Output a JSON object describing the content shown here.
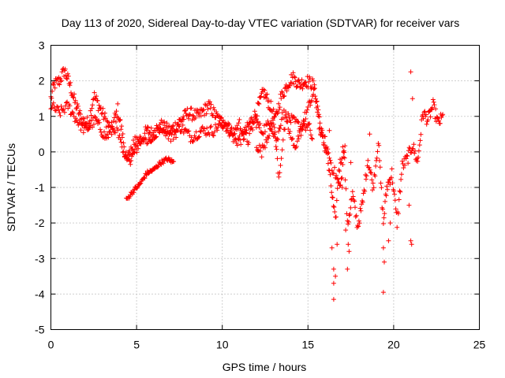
{
  "chart_data": {
    "type": "scatter",
    "title": "Day 113 of 2020, Sidereal Day-to-day VTEC variation (SDTVAR) for receiver vars",
    "xlabel": "GPS time / hours",
    "ylabel": "SDTVAR / TECUs",
    "xlim": [
      0,
      25
    ],
    "ylim": [
      -5,
      3
    ],
    "xticks": [
      "0",
      "5",
      "10",
      "15",
      "20",
      "25"
    ],
    "yticks": [
      "-5",
      "-4",
      "-3",
      "-2",
      "-1",
      "0",
      "1",
      "2",
      "3"
    ],
    "grid": true,
    "marker": "+",
    "series": [
      {
        "name": "SDTVAR",
        "color": "#ff0000",
        "track": [
          [
            0.0,
            1.5
          ],
          [
            0.2,
            1.9
          ],
          [
            0.5,
            2.0
          ],
          [
            0.8,
            2.3
          ],
          [
            1.1,
            1.9
          ],
          [
            1.4,
            1.4
          ],
          [
            1.8,
            0.9
          ],
          [
            2.2,
            0.8
          ],
          [
            2.5,
            1.6
          ],
          [
            3.0,
            1.1
          ],
          [
            3.5,
            0.6
          ],
          [
            3.9,
            1.2
          ],
          [
            4.2,
            0.4
          ],
          [
            4.4,
            -0.3
          ],
          [
            4.8,
            -0.1
          ],
          [
            5.2,
            0.3
          ],
          [
            5.6,
            0.6
          ],
          [
            6.0,
            0.5
          ],
          [
            6.5,
            0.7
          ],
          [
            7.0,
            0.6
          ],
          [
            7.4,
            0.8
          ],
          [
            8.0,
            1.1
          ],
          [
            8.6,
            1.0
          ],
          [
            9.2,
            1.3
          ],
          [
            9.8,
            0.9
          ],
          [
            10.3,
            0.7
          ],
          [
            10.8,
            0.3
          ],
          [
            11.2,
            0.4
          ],
          [
            11.6,
            0.8
          ],
          [
            12.0,
            1.1
          ],
          [
            12.4,
            1.7
          ],
          [
            12.8,
            1.3
          ],
          [
            13.1,
            0.9
          ],
          [
            13.4,
            1.5
          ],
          [
            13.8,
            1.9
          ],
          [
            14.1,
            2.1
          ],
          [
            14.5,
            1.9
          ],
          [
            14.9,
            2.0
          ],
          [
            15.3,
            1.9
          ],
          [
            15.6,
            1.2
          ],
          [
            15.8,
            0.4
          ],
          [
            16.1,
            0.0
          ],
          [
            16.3,
            -0.8
          ],
          [
            16.6,
            -2.0
          ],
          [
            16.8,
            -0.5
          ],
          [
            17.1,
            0.2
          ],
          [
            17.3,
            -2.1
          ],
          [
            17.6,
            -1.2
          ],
          [
            17.9,
            -2.1
          ],
          [
            18.2,
            -1.4
          ],
          [
            18.5,
            -0.2
          ],
          [
            18.8,
            -1.0
          ],
          [
            19.1,
            0.3
          ],
          [
            19.4,
            -2.0
          ],
          [
            19.6,
            -1.0
          ],
          [
            19.9,
            -0.6
          ],
          [
            20.2,
            -2.0
          ],
          [
            20.5,
            -0.4
          ],
          [
            20.8,
            -0.2
          ],
          [
            21.1,
            0.2
          ],
          [
            21.4,
            -0.3
          ],
          [
            21.7,
            1.1
          ],
          [
            22.0,
            0.9
          ],
          [
            22.3,
            1.3
          ],
          [
            22.6,
            0.8
          ],
          [
            22.9,
            1.0
          ]
        ],
        "track_b": [
          [
            0.0,
            1.3
          ],
          [
            0.5,
            1.1
          ],
          [
            1.0,
            1.3
          ],
          [
            1.5,
            0.9
          ],
          [
            2.0,
            0.6
          ],
          [
            2.6,
            0.9
          ],
          [
            3.2,
            0.4
          ],
          [
            3.8,
            0.7
          ],
          [
            4.3,
            -0.2
          ],
          [
            5.0,
            0.4
          ],
          [
            5.8,
            0.3
          ],
          [
            6.4,
            0.8
          ],
          [
            7.0,
            0.4
          ],
          [
            7.6,
            0.7
          ],
          [
            8.2,
            0.4
          ],
          [
            8.8,
            0.6
          ],
          [
            9.5,
            0.6
          ],
          [
            10.1,
            0.9
          ],
          [
            10.6,
            0.5
          ],
          [
            11.0,
            0.8
          ],
          [
            11.5,
            0.3
          ],
          [
            11.9,
            0.9
          ],
          [
            12.3,
            0.6
          ],
          [
            12.8,
            0.8
          ],
          [
            13.2,
            0.3
          ],
          [
            13.5,
            1.1
          ],
          [
            14.0,
            0.9
          ],
          [
            14.6,
            0.7
          ],
          [
            15.0,
            1.2
          ],
          [
            15.4,
            1.7
          ],
          [
            15.7,
            0.6
          ],
          [
            16.0,
            0.3
          ],
          [
            16.4,
            -0.4
          ],
          [
            16.9,
            -1.0
          ],
          [
            17.2,
            0.4
          ]
        ],
        "track_c": [
          [
            4.4,
            -1.35
          ],
          [
            4.8,
            -1.1
          ],
          [
            5.2,
            -0.9
          ],
          [
            5.6,
            -0.6
          ],
          [
            6.0,
            -0.5
          ],
          [
            6.4,
            -0.3
          ],
          [
            6.8,
            -0.2
          ],
          [
            7.2,
            -0.3
          ]
        ],
        "track_d": [
          [
            12.0,
            0.2
          ],
          [
            12.3,
            0.0
          ],
          [
            12.6,
            0.4
          ],
          [
            13.0,
            0.9
          ],
          [
            13.3,
            -0.7
          ],
          [
            13.7,
            0.9
          ],
          [
            14.2,
            0.1
          ],
          [
            14.6,
            0.6
          ],
          [
            15.0,
            0.8
          ],
          [
            15.3,
            0.3
          ]
        ],
        "outliers": [
          [
            16.5,
            -4.15
          ],
          [
            16.5,
            -3.7
          ],
          [
            16.5,
            -3.3
          ],
          [
            16.6,
            -3.5
          ],
          [
            16.7,
            -2.6
          ],
          [
            17.3,
            -3.3
          ],
          [
            17.35,
            -2.6
          ],
          [
            17.2,
            -2.2
          ],
          [
            17.4,
            -2.8
          ],
          [
            17.0,
            -1.0
          ],
          [
            19.4,
            -3.95
          ],
          [
            19.45,
            -3.1
          ],
          [
            19.4,
            -2.7
          ],
          [
            19.7,
            -2.5
          ],
          [
            21.0,
            2.25
          ],
          [
            21.1,
            1.5
          ],
          [
            21.0,
            -2.5
          ],
          [
            21.05,
            -2.6
          ],
          [
            20.9,
            -1.5
          ],
          [
            16.25,
            0.6
          ],
          [
            16.4,
            -2.7
          ],
          [
            17.5,
            -0.3
          ],
          [
            18.6,
            0.5
          ],
          [
            19.8,
            -2.0
          ]
        ]
      }
    ]
  }
}
